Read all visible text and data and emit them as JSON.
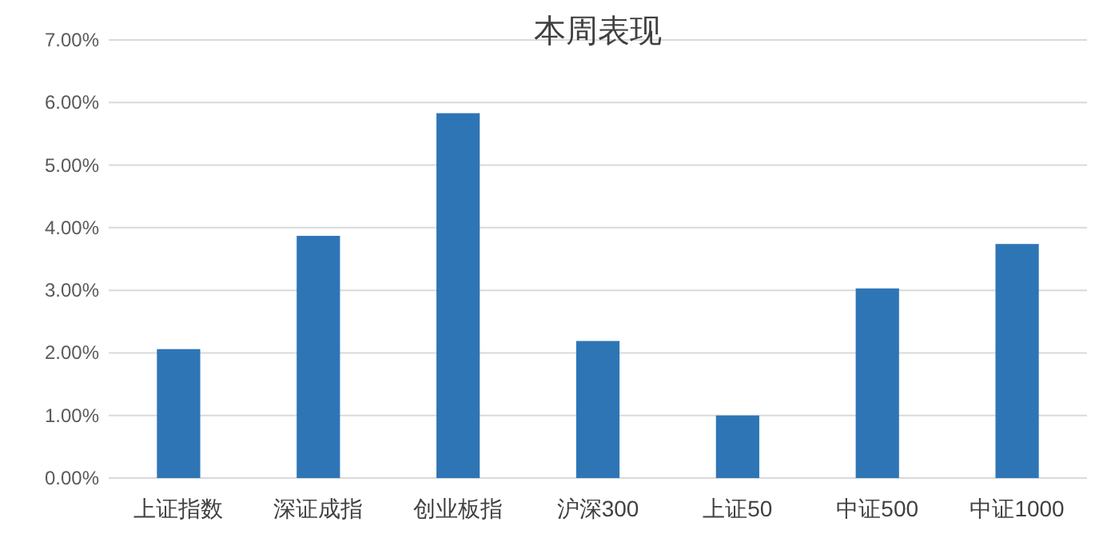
{
  "chart_data": {
    "type": "bar",
    "title": "本周表现",
    "categories": [
      "上证指数",
      "深证成指",
      "创业板指",
      "沪深300",
      "上证50",
      "中证500",
      "中证1000"
    ],
    "values": [
      2.06,
      3.87,
      5.83,
      2.19,
      1.0,
      3.03,
      3.74
    ],
    "color": "#2e75b6",
    "ylim": [
      0,
      7
    ],
    "yticks": [
      {
        "value": 0,
        "label": "0.00%"
      },
      {
        "value": 1,
        "label": "1.00%"
      },
      {
        "value": 2,
        "label": "2.00%"
      },
      {
        "value": 3,
        "label": "3.00%"
      },
      {
        "value": 4,
        "label": "4.00%"
      },
      {
        "value": 5,
        "label": "5.00%"
      },
      {
        "value": 6,
        "label": "6.00%"
      },
      {
        "value": 7,
        "label": "7.00%"
      }
    ],
    "grid": "y"
  }
}
